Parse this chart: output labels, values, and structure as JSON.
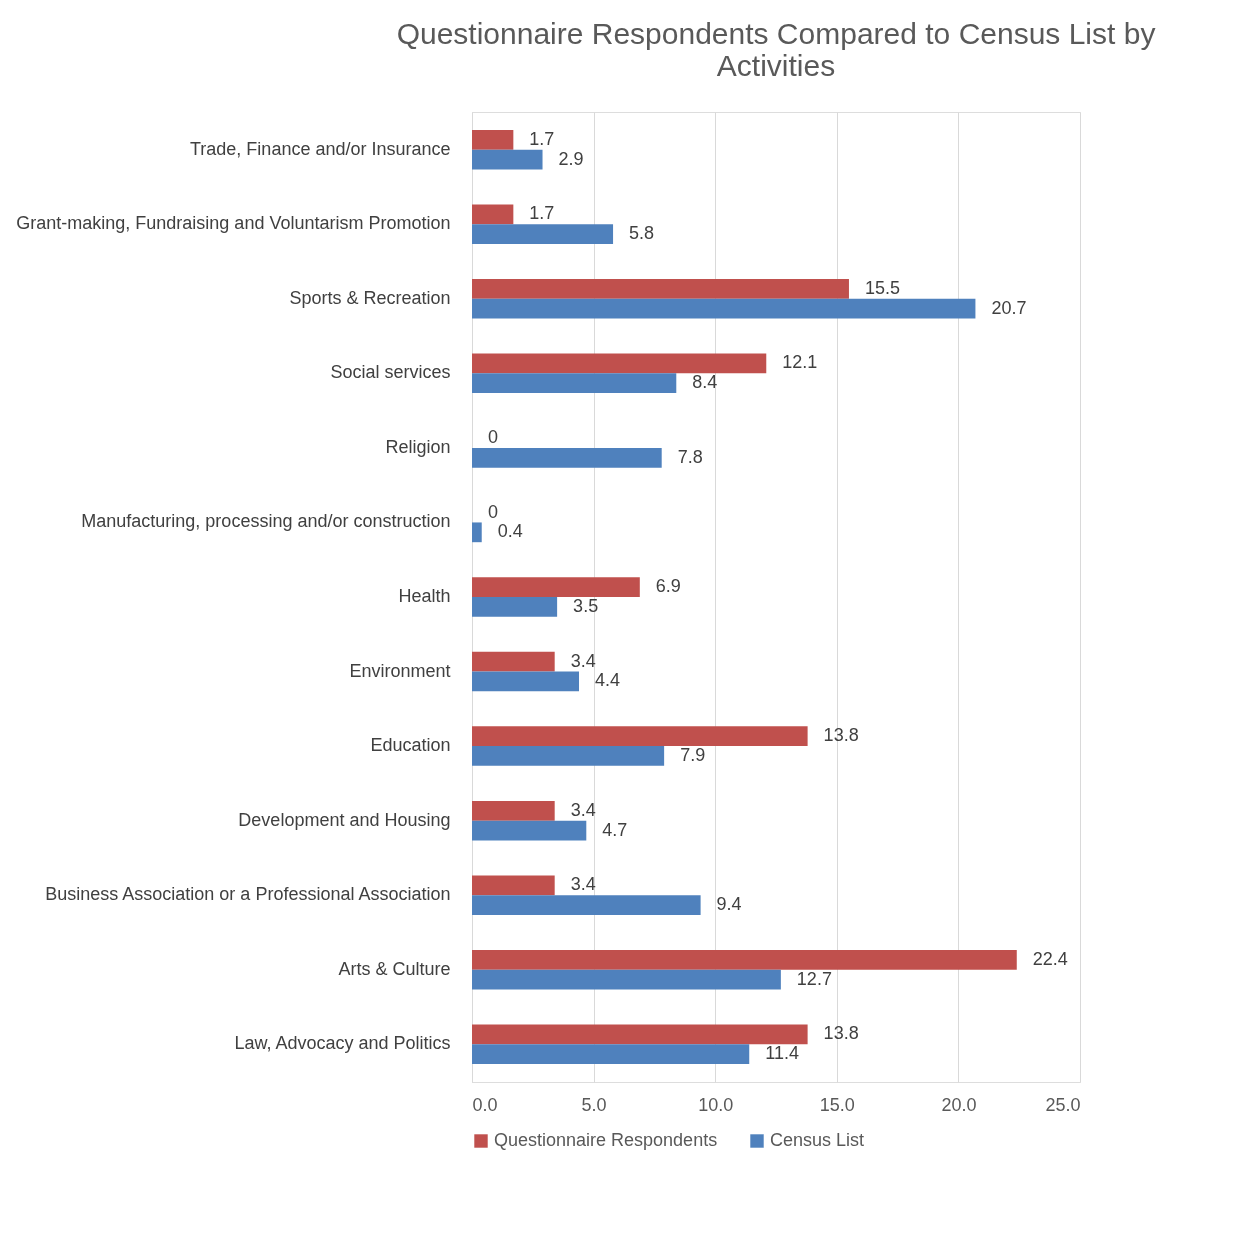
{
  "chart_data": {
    "type": "bar",
    "orientation": "horizontal",
    "title": "Questionnaire Respondents Compared to Census List by Activities",
    "categories": [
      "Trade, Finance and/or Insurance",
      "Grant-making, Fundraising and Voluntarism Promotion",
      "Sports & Recreation",
      "Social services",
      "Religion",
      "Manufacturing, processing and/or construction",
      "Health",
      "Environment",
      "Education",
      "Development and Housing",
      "Business Association or a Professional Association",
      "Arts & Culture",
      "Law, Advocacy and Politics"
    ],
    "series": [
      {
        "name": "Questionnaire Respondents",
        "color": "#c0504d",
        "values": [
          1.7,
          1.7,
          15.5,
          12.1,
          0,
          0,
          6.9,
          3.4,
          13.8,
          3.4,
          3.4,
          22.4,
          13.8
        ]
      },
      {
        "name": "Census List",
        "color": "#4f81bd",
        "values": [
          2.9,
          5.8,
          20.7,
          8.4,
          7.8,
          0.4,
          3.5,
          4.4,
          7.9,
          4.7,
          9.4,
          12.7,
          11.4
        ]
      }
    ],
    "xlim": [
      0,
      25
    ],
    "xticks": [
      {
        "value": 0,
        "label": "0.0"
      },
      {
        "value": 5,
        "label": "5.0"
      },
      {
        "value": 10,
        "label": "10.0"
      },
      {
        "value": 15,
        "label": "15.0"
      },
      {
        "value": 20,
        "label": "20.0"
      },
      {
        "value": 25,
        "label": "25.0"
      }
    ],
    "grid": "x",
    "legend": "bottom",
    "data_labels": true
  }
}
